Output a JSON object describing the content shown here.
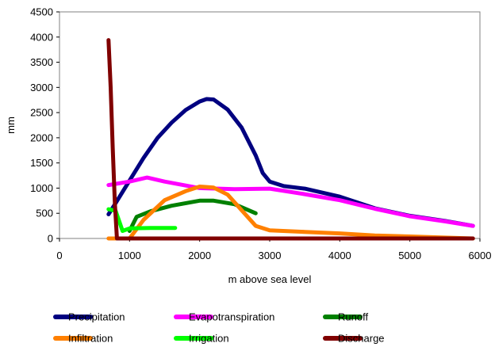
{
  "chart_data": {
    "type": "line",
    "title": "",
    "xlabel": "m above sea level",
    "ylabel": "mm",
    "xlim": [
      0,
      6000
    ],
    "ylim": [
      0,
      4500
    ],
    "xticks": [
      0,
      1000,
      2000,
      3000,
      4000,
      5000,
      6000
    ],
    "yticks": [
      0,
      500,
      1000,
      1500,
      2000,
      2500,
      3000,
      3500,
      4000,
      4500
    ],
    "grid": false,
    "legend_position": "bottom",
    "series": [
      {
        "name": "Precipitation",
        "color": "#000080",
        "points": [
          [
            700,
            480
          ],
          [
            800,
            700
          ],
          [
            1000,
            1150
          ],
          [
            1200,
            1600
          ],
          [
            1400,
            2000
          ],
          [
            1600,
            2300
          ],
          [
            1800,
            2550
          ],
          [
            2000,
            2720
          ],
          [
            2100,
            2770
          ],
          [
            2200,
            2760
          ],
          [
            2400,
            2560
          ],
          [
            2600,
            2200
          ],
          [
            2800,
            1650
          ],
          [
            2900,
            1300
          ],
          [
            3000,
            1130
          ],
          [
            3200,
            1040
          ],
          [
            3500,
            990
          ],
          [
            4000,
            830
          ],
          [
            4500,
            600
          ],
          [
            5000,
            450
          ],
          [
            5500,
            350
          ],
          [
            5900,
            250
          ]
        ]
      },
      {
        "name": "Evapotranspiration",
        "color": "#ff00ff",
        "points": [
          [
            700,
            1060
          ],
          [
            1000,
            1130
          ],
          [
            1250,
            1210
          ],
          [
            1500,
            1130
          ],
          [
            2000,
            1000
          ],
          [
            2500,
            980
          ],
          [
            3000,
            990
          ],
          [
            3500,
            880
          ],
          [
            4000,
            760
          ],
          [
            4500,
            590
          ],
          [
            5000,
            440
          ],
          [
            5500,
            340
          ],
          [
            5900,
            250
          ]
        ]
      },
      {
        "name": "Runoff",
        "color": "#008000",
        "points": [
          [
            1000,
            150
          ],
          [
            1100,
            430
          ],
          [
            1300,
            540
          ],
          [
            1600,
            650
          ],
          [
            2000,
            750
          ],
          [
            2200,
            750
          ],
          [
            2500,
            680
          ],
          [
            2800,
            500
          ]
        ]
      },
      {
        "name": "Infiltration",
        "color": "#ff8000",
        "points": [
          [
            700,
            0
          ],
          [
            1000,
            0
          ],
          [
            1200,
            370
          ],
          [
            1500,
            760
          ],
          [
            1800,
            940
          ],
          [
            2000,
            1030
          ],
          [
            2200,
            1010
          ],
          [
            2400,
            870
          ],
          [
            2600,
            560
          ],
          [
            2800,
            250
          ],
          [
            3000,
            160
          ],
          [
            3500,
            130
          ],
          [
            4000,
            100
          ],
          [
            4500,
            60
          ],
          [
            5000,
            40
          ],
          [
            5900,
            0
          ]
        ]
      },
      {
        "name": "Irrigation",
        "color": "#00ff00",
        "points": [
          [
            700,
            580
          ],
          [
            800,
            550
          ],
          [
            900,
            150
          ],
          [
            1000,
            200
          ],
          [
            1300,
            210
          ],
          [
            1650,
            210
          ]
        ]
      },
      {
        "name": "Discharge",
        "color": "#800000",
        "points": [
          [
            700,
            3940
          ],
          [
            730,
            3000
          ],
          [
            760,
            1800
          ],
          [
            790,
            700
          ],
          [
            820,
            0
          ],
          [
            1000,
            0
          ],
          [
            2000,
            0
          ],
          [
            3000,
            0
          ],
          [
            4000,
            0
          ],
          [
            5000,
            0
          ],
          [
            5900,
            0
          ]
        ]
      }
    ]
  }
}
